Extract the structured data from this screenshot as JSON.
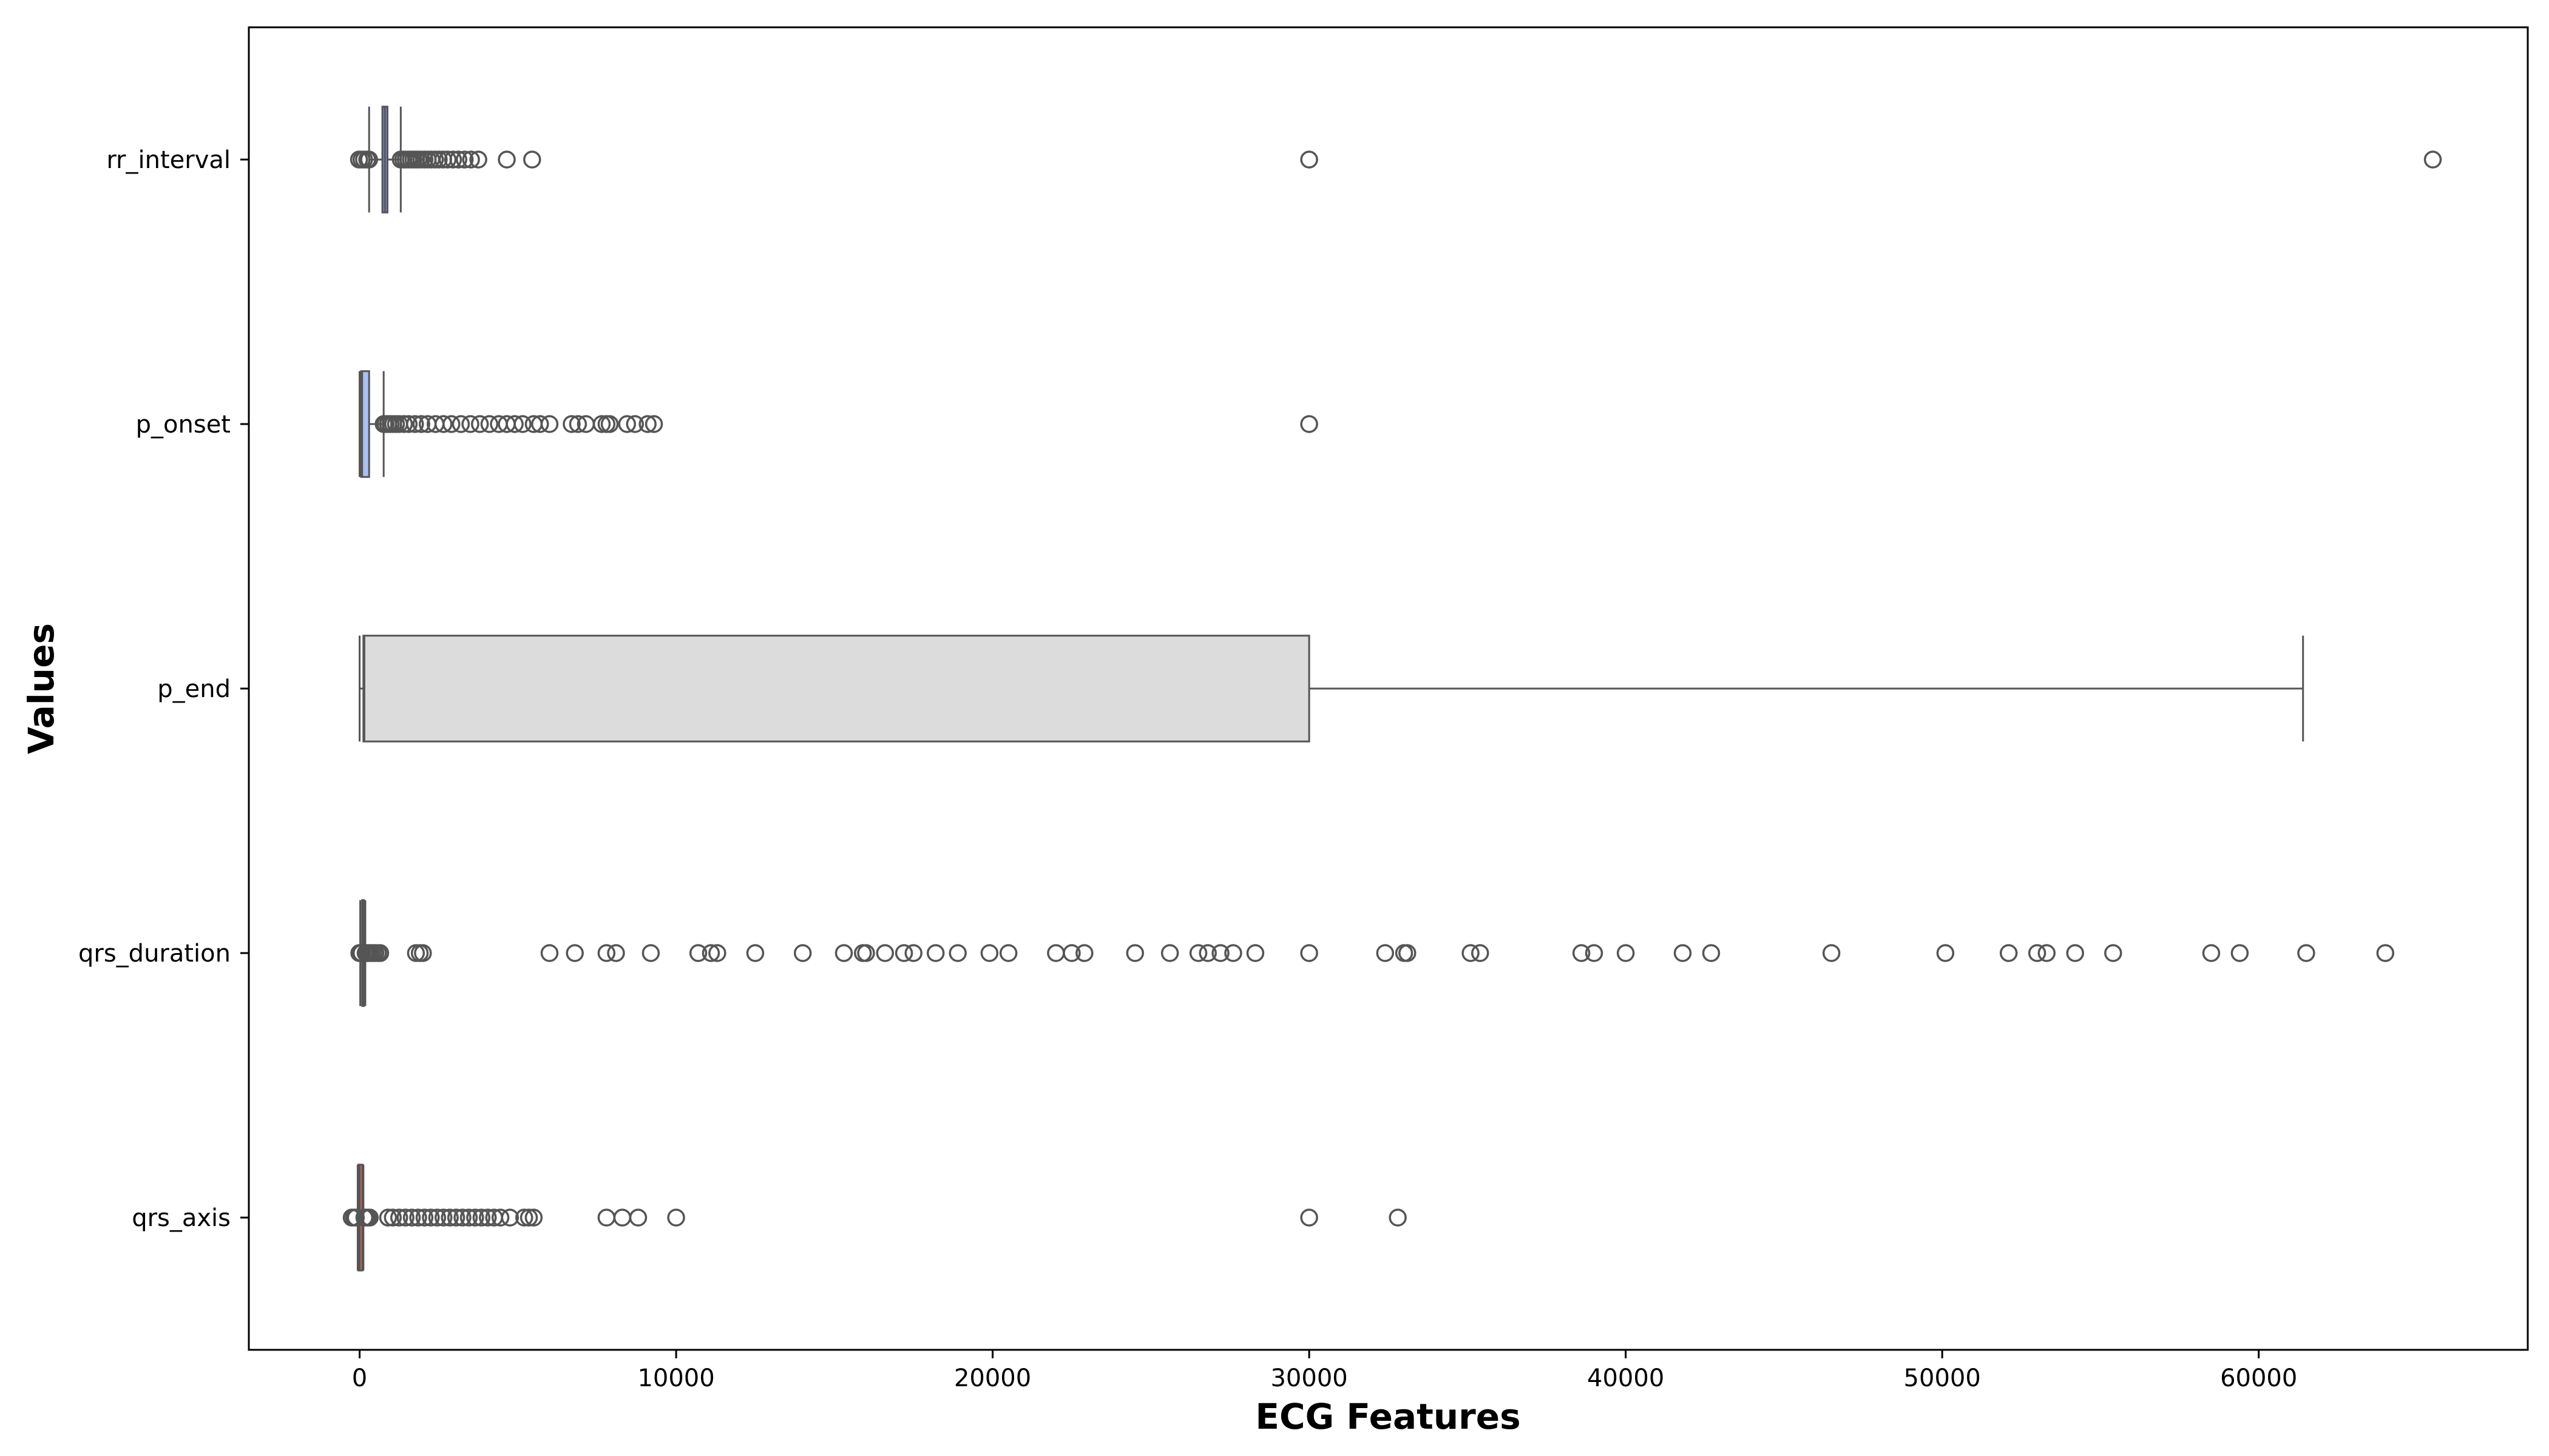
{
  "chart_data": {
    "type": "boxplot",
    "orientation": "horizontal",
    "xlabel": "ECG Features",
    "ylabel": "Values",
    "xlim": [
      -3500,
      68500
    ],
    "x_ticks": [
      0,
      10000,
      20000,
      30000,
      40000,
      50000,
      60000
    ],
    "x_tick_labels": [
      "0",
      "10000",
      "20000",
      "30000",
      "40000",
      "50000",
      "60000"
    ],
    "grid": false,
    "legend": "none",
    "colors": {
      "rr_interval": "#7b8ff0",
      "p_onset": "#a9c0f4",
      "p_end": "#dcdcdc",
      "qrs_duration": "#eeb59a",
      "qrs_axis": "#d9694f",
      "line": "#555555",
      "frame": "#000000"
    },
    "categories": [
      "rr_interval",
      "p_onset",
      "p_end",
      "qrs_duration",
      "qrs_axis"
    ],
    "boxes": [
      {
        "label": "rr_interval",
        "whisker_low": 300,
        "q1": 720,
        "median": 800,
        "q3": 880,
        "whisker_high": 1300,
        "outliers": [
          -20,
          60,
          140,
          240,
          300,
          1300,
          1380,
          1460,
          1540,
          1620,
          1700,
          1780,
          1860,
          1950,
          2050,
          2150,
          2260,
          2380,
          2500,
          2640,
          2780,
          2950,
          3120,
          3320,
          3520,
          3750,
          4650,
          5450,
          30000,
          65500
        ]
      },
      {
        "label": "p_onset",
        "whisker_low": 0,
        "q1": 50,
        "median": 80,
        "q3": 300,
        "whisker_high": 760,
        "outliers": [
          760,
          820,
          900,
          980,
          1060,
          1150,
          1250,
          1400,
          1550,
          1750,
          1950,
          2150,
          2400,
          2650,
          2900,
          3200,
          3500,
          3800,
          4100,
          4400,
          4650,
          4900,
          5150,
          5500,
          5700,
          6000,
          6700,
          6900,
          7150,
          7650,
          7800,
          7900,
          8450,
          8700,
          9100,
          9300,
          30000
        ]
      },
      {
        "label": "p_end",
        "whisker_low": 0,
        "q1": 120,
        "median": 150,
        "q3": 30000,
        "whisker_high": 61400,
        "outliers": []
      },
      {
        "label": "qrs_duration",
        "whisker_low": 20,
        "q1": 80,
        "median": 100,
        "q3": 120,
        "whisker_high": 180,
        "outliers": [
          -10,
          20,
          60,
          190,
          240,
          300,
          360,
          430,
          500,
          580,
          650,
          1780,
          1900,
          2000,
          6000,
          6800,
          7800,
          8100,
          9200,
          10700,
          11100,
          11300,
          12500,
          14000,
          15300,
          15900,
          16000,
          16600,
          17200,
          17500,
          18200,
          18900,
          19900,
          20500,
          22000,
          22500,
          22900,
          24500,
          25600,
          26500,
          26800,
          27200,
          27600,
          28300,
          30000,
          32400,
          33000,
          33100,
          35100,
          35400,
          38600,
          39000,
          40000,
          41800,
          42700,
          46500,
          50100,
          52100,
          53000,
          53300,
          54200,
          55400,
          58500,
          59400,
          61500,
          64000
        ]
      },
      {
        "label": "qrs_axis",
        "whisker_low": -60,
        "q1": -40,
        "median": 0,
        "q3": 90,
        "whisker_high": 120,
        "outliers": [
          -250,
          -180,
          -120,
          150,
          200,
          260,
          320,
          900,
          1050,
          1250,
          1450,
          1650,
          1850,
          2050,
          2250,
          2450,
          2650,
          2850,
          3050,
          3250,
          3450,
          3650,
          3850,
          4050,
          4250,
          4450,
          4750,
          5200,
          5350,
          5500,
          7800,
          8300,
          8800,
          10000,
          30000,
          32800
        ]
      }
    ]
  }
}
